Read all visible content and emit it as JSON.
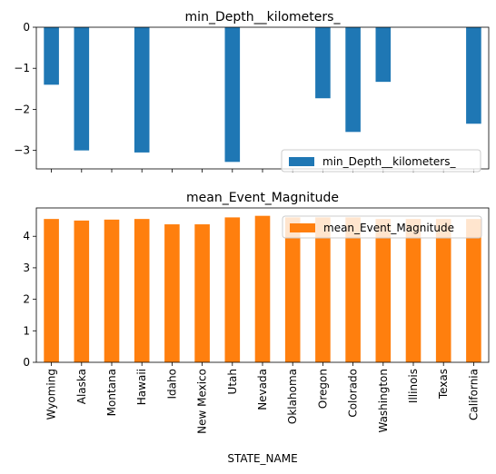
{
  "chart_data": [
    {
      "type": "bar",
      "title": "min_Depth__kilometers_",
      "categories": [
        "Wyoming",
        "Alaska",
        "Montana",
        "Hawaii",
        "Idaho",
        "New Mexico",
        "Utah",
        "Nevada",
        "Oklahoma",
        "Oregon",
        "Colorado",
        "Washington",
        "Illinois",
        "Texas",
        "California"
      ],
      "series": [
        {
          "name": "min_Depth__kilometers_",
          "color": "#1f77b4",
          "values": [
            -1.4,
            -3.0,
            0,
            -3.05,
            0,
            0,
            -3.28,
            0,
            0,
            -1.73,
            -2.55,
            -1.33,
            0,
            0,
            -2.35
          ]
        }
      ],
      "ylim": [
        -3.45,
        0
      ],
      "yticks": [
        0,
        -1,
        -2,
        -3
      ],
      "legend_position": "lower-right",
      "xlabel": "",
      "ylabel": ""
    },
    {
      "type": "bar",
      "title": "mean_Event_Magnitude",
      "categories": [
        "Wyoming",
        "Alaska",
        "Montana",
        "Hawaii",
        "Idaho",
        "New Mexico",
        "Utah",
        "Nevada",
        "Oklahoma",
        "Oregon",
        "Colorado",
        "Washington",
        "Illinois",
        "Texas",
        "California"
      ],
      "series": [
        {
          "name": "mean_Event_Magnitude",
          "color": "#ff7f0e",
          "values": [
            4.55,
            4.5,
            4.53,
            4.55,
            4.38,
            4.38,
            4.6,
            4.65,
            4.6,
            4.6,
            4.6,
            4.55,
            4.55,
            4.55,
            4.55
          ]
        }
      ],
      "ylim": [
        0,
        4.9
      ],
      "yticks": [
        0,
        1,
        2,
        3,
        4
      ],
      "legend_position": "upper-right",
      "xlabel": "STATE_NAME",
      "ylabel": ""
    }
  ]
}
